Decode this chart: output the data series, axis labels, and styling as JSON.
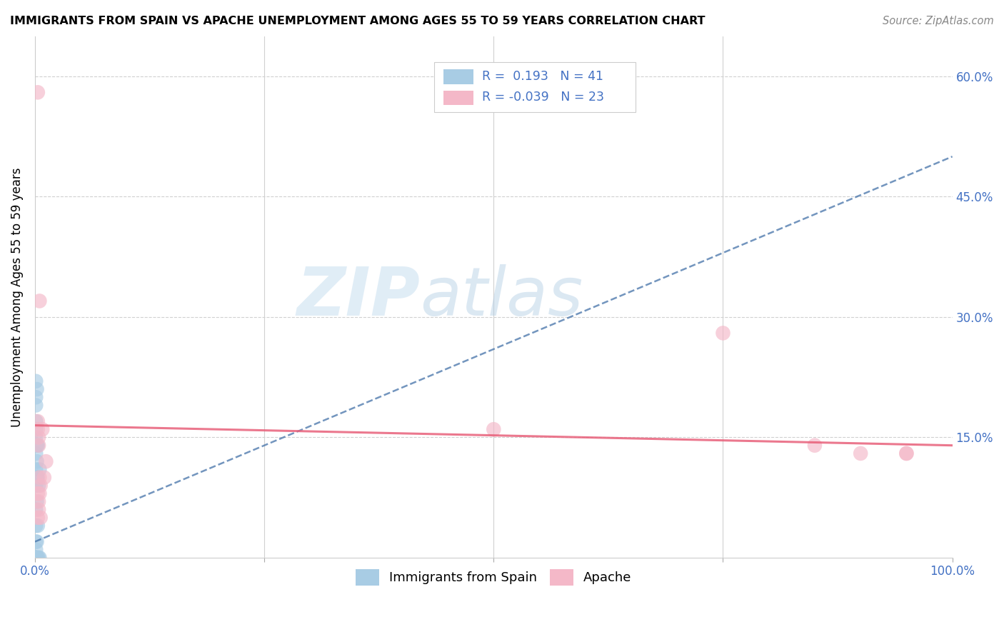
{
  "title": "IMMIGRANTS FROM SPAIN VS APACHE UNEMPLOYMENT AMONG AGES 55 TO 59 YEARS CORRELATION CHART",
  "source": "Source: ZipAtlas.com",
  "ylabel": "Unemployment Among Ages 55 to 59 years",
  "xlim": [
    0.0,
    1.0
  ],
  "ylim": [
    0.0,
    0.65
  ],
  "legend_r_blue": "0.193",
  "legend_n_blue": "41",
  "legend_r_pink": "-0.039",
  "legend_n_pink": "23",
  "legend_label_blue": "Immigrants from Spain",
  "legend_label_pink": "Apache",
  "blue_color": "#a8cce4",
  "pink_color": "#f4b8c8",
  "blue_line_color": "#4472a8",
  "pink_line_color": "#e8607a",
  "blue_scatter_x": [
    0.0,
    0.0,
    0.0,
    0.0,
    0.0,
    0.0,
    0.0,
    0.0,
    0.0,
    0.0,
    0.001,
    0.001,
    0.001,
    0.001,
    0.001,
    0.001,
    0.001,
    0.001,
    0.002,
    0.002,
    0.002,
    0.002,
    0.002,
    0.003,
    0.003,
    0.003,
    0.003,
    0.004,
    0.004,
    0.005,
    0.005,
    0.001,
    0.001,
    0.001,
    0.002,
    0.002,
    0.001,
    0.001,
    0.001,
    0.001,
    0.002
  ],
  "blue_scatter_y": [
    0.0,
    0.0,
    0.0,
    0.0,
    0.0,
    0.0,
    0.0,
    0.0,
    0.0,
    0.0,
    0.0,
    0.0,
    0.01,
    0.02,
    0.04,
    0.06,
    0.09,
    0.11,
    0.0,
    0.0,
    0.02,
    0.07,
    0.1,
    0.0,
    0.04,
    0.1,
    0.14,
    0.0,
    0.09,
    0.0,
    0.11,
    0.13,
    0.15,
    0.16,
    0.12,
    0.14,
    0.17,
    0.19,
    0.2,
    0.22,
    0.21
  ],
  "pink_scatter_x": [
    0.003,
    0.005,
    0.003,
    0.004,
    0.003,
    0.004,
    0.005,
    0.006,
    0.008,
    0.01,
    0.012,
    0.003,
    0.004,
    0.5,
    0.75,
    0.85,
    0.9,
    0.95,
    0.95,
    0.003,
    0.004,
    0.005,
    0.006
  ],
  "pink_scatter_y": [
    0.58,
    0.32,
    0.17,
    0.15,
    0.16,
    0.14,
    0.1,
    0.09,
    0.16,
    0.1,
    0.12,
    0.08,
    0.07,
    0.16,
    0.28,
    0.14,
    0.13,
    0.13,
    0.13,
    0.05,
    0.06,
    0.08,
    0.05
  ],
  "blue_trend_x": [
    0.0,
    1.0
  ],
  "blue_trend_y": [
    0.02,
    0.5
  ],
  "pink_trend_x": [
    0.0,
    1.0
  ],
  "pink_trend_y": [
    0.165,
    0.14
  ],
  "watermark_zip": "ZIP",
  "watermark_atlas": "atlas",
  "background_color": "#ffffff",
  "grid_color": "#d0d0d0",
  "text_color_blue": "#4472c4",
  "title_fontsize": 11.5,
  "axis_label_fontsize": 12
}
